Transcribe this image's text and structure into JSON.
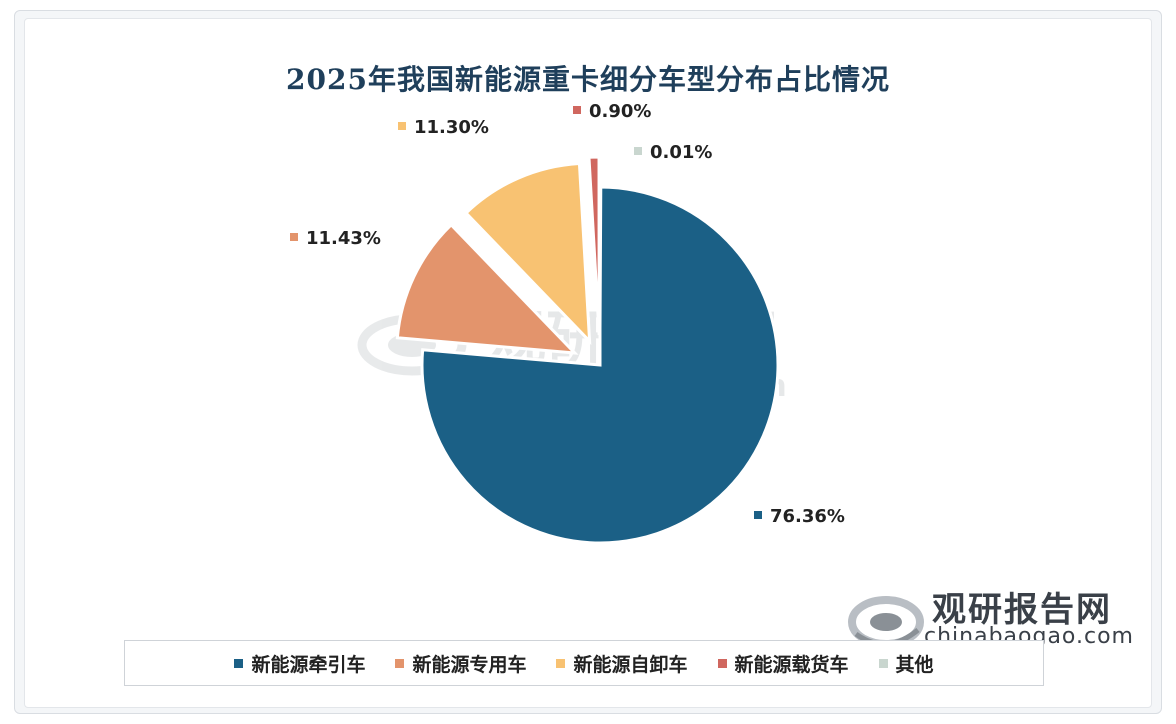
{
  "watermark": {
    "text_cn": "观研报告网",
    "text_en": "chinabaogao.com"
  },
  "chart_data": {
    "type": "pie",
    "title": "2025年我国新能源重卡细分车型分布占比情况",
    "categories": [
      "新能源牵引车",
      "新能源专用车",
      "新能源自卸车",
      "新能源载货车",
      "其他"
    ],
    "values": [
      76.36,
      11.43,
      11.3,
      0.9,
      0.01
    ],
    "labels": [
      "76.36%",
      "11.43%",
      "11.30%",
      "0.90%",
      "0.01%"
    ],
    "colors": [
      "#1b6086",
      "#e3946c",
      "#f8c272",
      "#d0675f",
      "#c9d6cf"
    ],
    "legend_position": "bottom",
    "exploded": true
  }
}
